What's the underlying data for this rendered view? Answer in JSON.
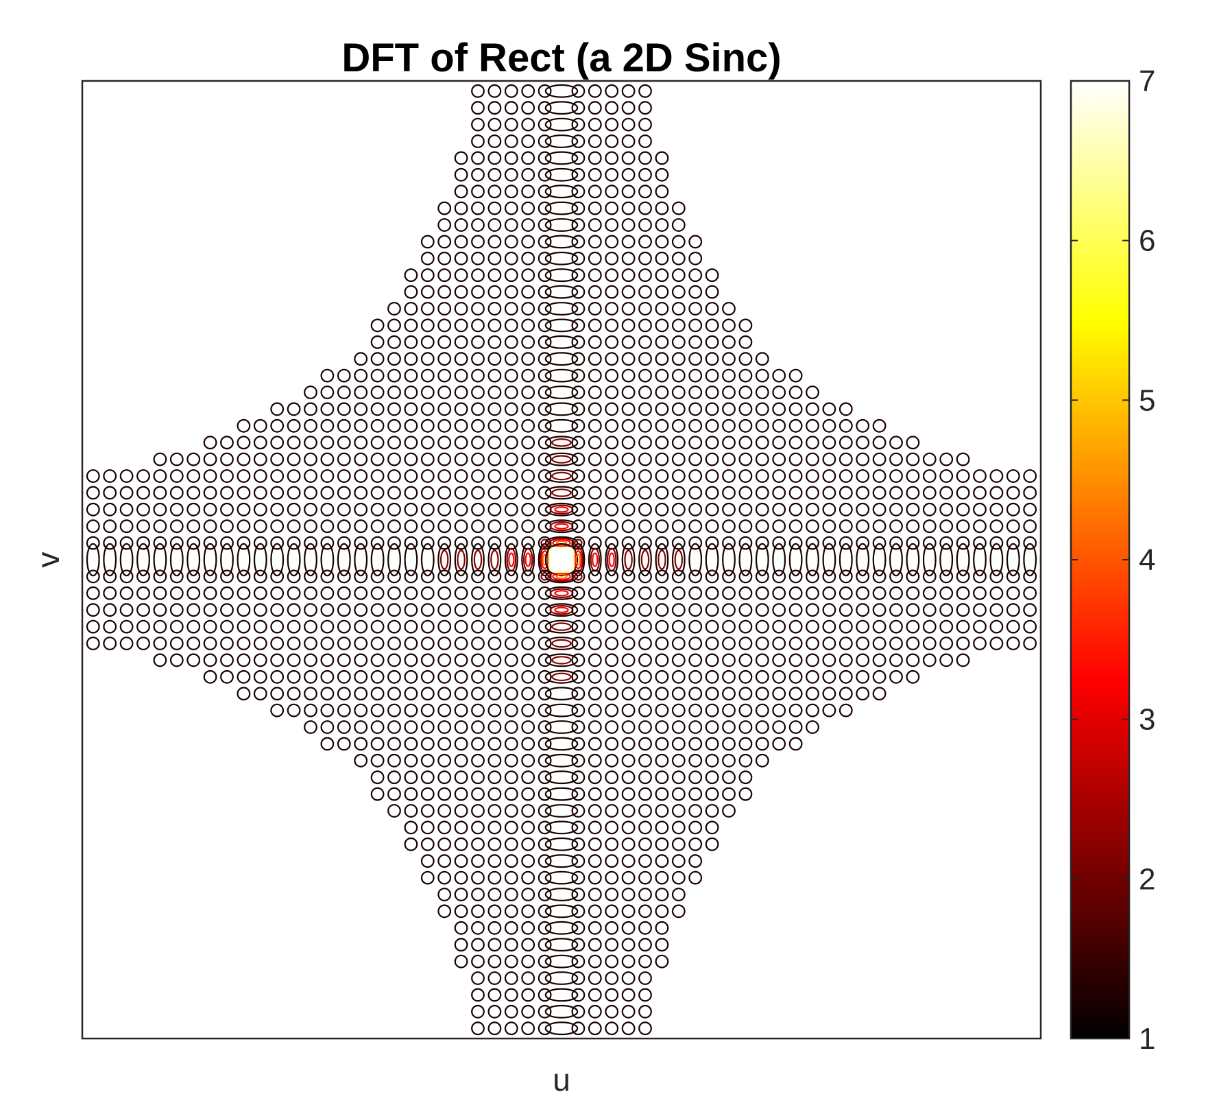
{
  "chart_data": {
    "type": "contour",
    "title": "DFT of Rect (a 2D Sinc)",
    "xlabel": "u",
    "ylabel": "v",
    "colormap": "hot",
    "colorbar": {
      "location": "right",
      "clim": [
        1,
        7
      ],
      "ticks": [
        1,
        2,
        3,
        4,
        5,
        6,
        7
      ],
      "tick_labels": [
        "1",
        "2",
        "3",
        "4",
        "5",
        "6",
        "7"
      ],
      "colors": [
        "#000000",
        "#550000",
        "#aa0000",
        "#ff0000",
        "#ff5500",
        "#ffaa00",
        "#ffff00",
        "#ffff80",
        "#ffffff"
      ]
    },
    "contour_levels": [
      1.5,
      2.5,
      3.5,
      4.5,
      5.5,
      6.5
    ],
    "surface": "log(1 + |sinc(u) * sinc(v)|) scaled; central lobe at center, side lobes along u and v axes",
    "axis_ticks_visible": false,
    "grid": false
  }
}
